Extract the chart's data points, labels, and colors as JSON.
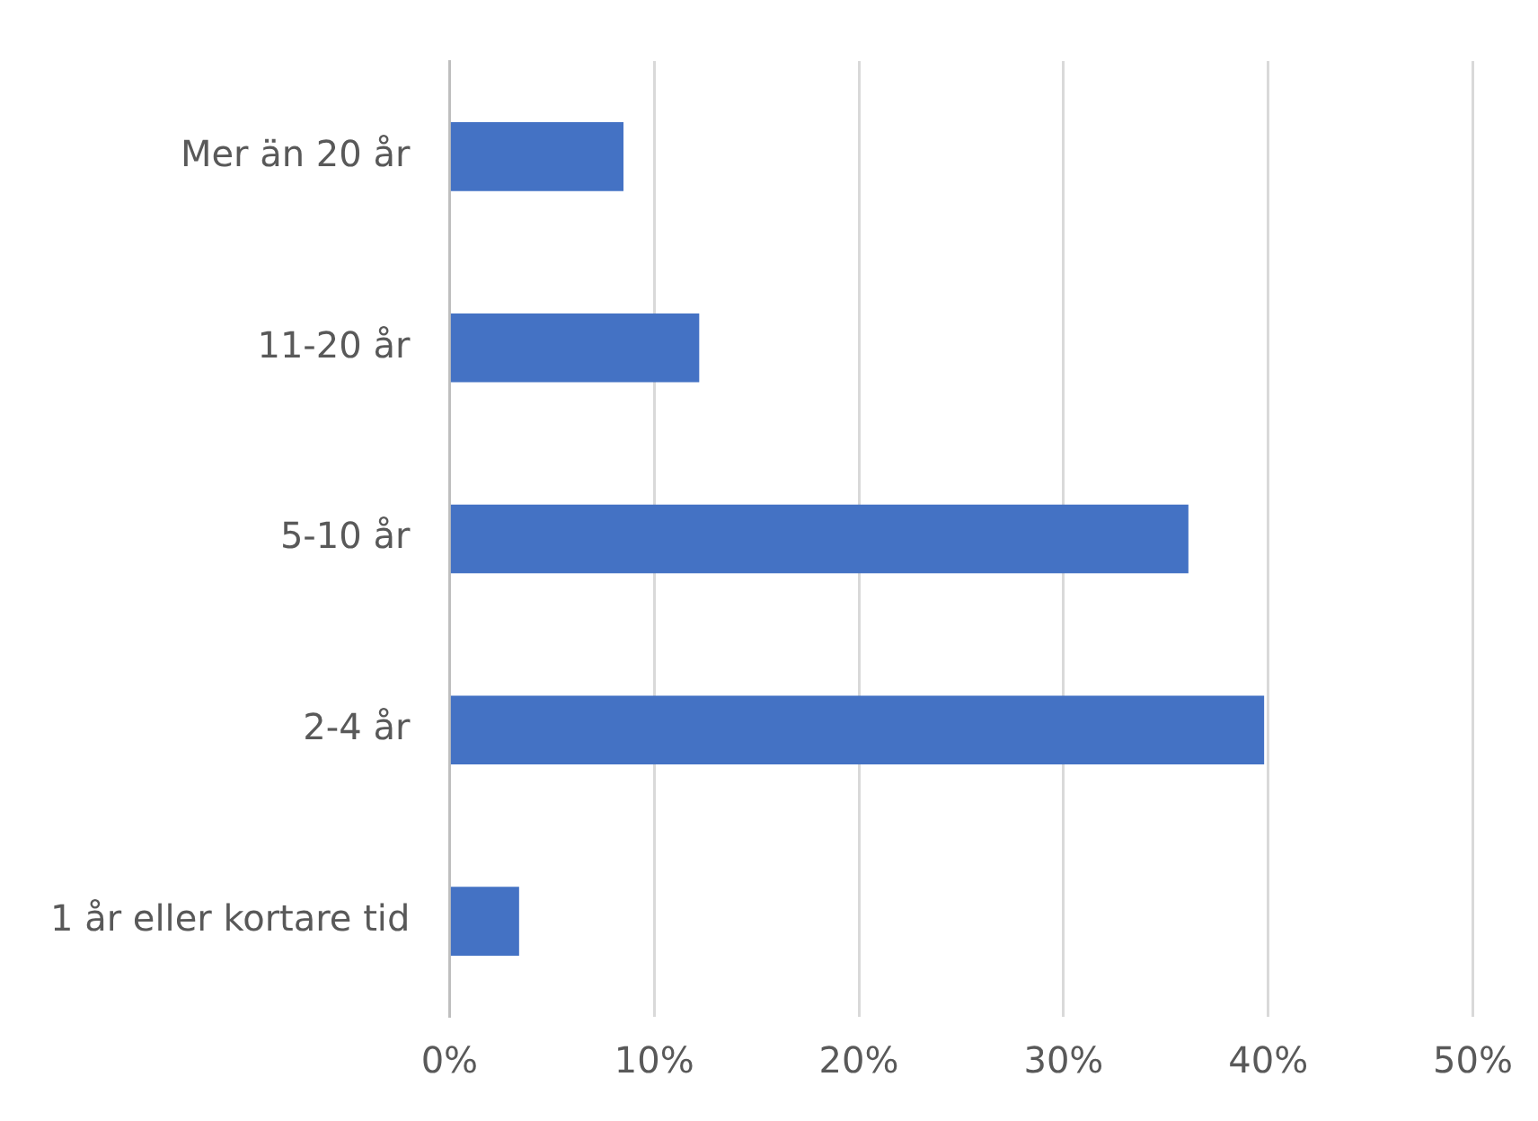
{
  "chart_data": {
    "type": "bar",
    "orientation": "horizontal",
    "categories": [
      "Mer än 20 år",
      "11-20 år",
      "5-10 år",
      "2-4 år",
      "1 år eller kortare tid"
    ],
    "values": [
      8.5,
      12.2,
      36.1,
      39.8,
      3.4
    ],
    "color": "#4472c4",
    "xlim": [
      0,
      50
    ],
    "xticks": [
      {
        "value": 0,
        "label": "0%"
      },
      {
        "value": 10,
        "label": "10%"
      },
      {
        "value": 20,
        "label": "20%"
      },
      {
        "value": 30,
        "label": "30%"
      },
      {
        "value": 40,
        "label": "40%"
      },
      {
        "value": 50,
        "label": "50%"
      }
    ],
    "grid": "x",
    "legend": false
  }
}
